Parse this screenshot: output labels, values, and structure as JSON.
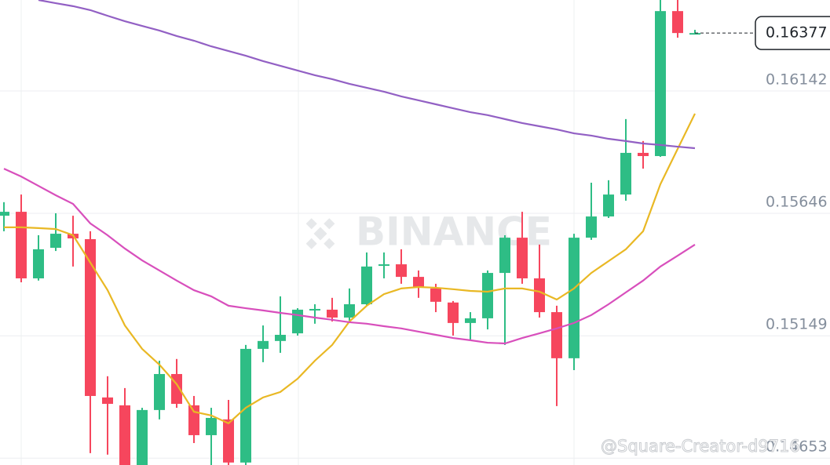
{
  "chart_data": {
    "type": "candlestick",
    "ylim": [
      0.14625,
      0.16511
    ],
    "yticks": [
      0.16142,
      0.15646,
      0.15149,
      0.14653
    ],
    "grid": true,
    "up_color": "#2ebd85",
    "down_color": "#f6465d",
    "open": [
      0.15636,
      0.15652,
      0.15382,
      0.15506,
      0.15563,
      0.15541,
      0.14899,
      0.14867,
      0.14625,
      0.14848,
      0.14994,
      0.14867,
      0.14746,
      0.1481,
      0.14635,
      0.15096,
      0.15128,
      0.15159,
      0.15255,
      0.15255,
      0.15223,
      0.15277,
      0.15433,
      0.15439,
      0.15388,
      0.15341,
      0.15284,
      0.15201,
      0.1522,
      0.15404,
      0.15547,
      0.15382,
      0.15245,
      0.15058,
      0.15547,
      0.15633,
      0.15722,
      0.15891,
      0.15878,
      0.16466,
      0.16374
    ],
    "high": [
      0.15691,
      0.15722,
      0.15557,
      0.15646,
      0.15636,
      0.15573,
      0.14985,
      0.14937,
      0.14857,
      0.15048,
      0.15055,
      0.14905,
      0.14857,
      0.14889,
      0.15112,
      0.15191,
      0.15309,
      0.15261,
      0.15277,
      0.15303,
      0.15341,
      0.15487,
      0.15487,
      0.155,
      0.15414,
      0.1536,
      0.1529,
      0.15245,
      0.15414,
      0.15557,
      0.15652,
      0.15519,
      0.15271,
      0.15563,
      0.1577,
      0.1578,
      0.16028,
      0.15939,
      0.16511,
      0.16511,
      0.1639
    ],
    "low": [
      0.15573,
      0.15366,
      0.15373,
      0.15493,
      0.1543,
      0.14673,
      0.14667,
      0.14603,
      0.14603,
      0.1481,
      0.14857,
      0.14714,
      0.14625,
      0.14625,
      0.14625,
      0.15042,
      0.1508,
      0.1515,
      0.15198,
      0.15207,
      0.15201,
      0.15271,
      0.15382,
      0.1536,
      0.15303,
      0.15245,
      0.1515,
      0.15131,
      0.15175,
      0.15112,
      0.1536,
      0.15223,
      0.14864,
      0.1501,
      0.15538,
      0.15627,
      0.15697,
      0.15827,
      0.15875,
      0.16358,
      0.16374
    ],
    "close": [
      0.15652,
      0.15382,
      0.155,
      0.15563,
      0.15544,
      0.14905,
      0.14873,
      0.14625,
      0.14848,
      0.14994,
      0.14873,
      0.14746,
      0.14816,
      0.14635,
      0.15096,
      0.15128,
      0.15153,
      0.15255,
      0.15258,
      0.15223,
      0.15277,
      0.1543,
      0.15439,
      0.15388,
      0.15347,
      0.15287,
      0.15201,
      0.1522,
      0.15404,
      0.15547,
      0.15382,
      0.15245,
      0.15058,
      0.15547,
      0.15633,
      0.15722,
      0.15891,
      0.15878,
      0.16466,
      0.16377,
      0.16377
    ],
    "series": [
      {
        "color": "#e9b824",
        "values": [
          0.15589,
          0.15589,
          0.15586,
          0.15582,
          0.15557,
          0.15446,
          0.15334,
          0.15191,
          0.15096,
          0.15032,
          0.14953,
          0.14841,
          0.14826,
          0.14794,
          0.14857,
          0.14899,
          0.14921,
          0.14975,
          0.15048,
          0.15112,
          0.15207,
          0.15271,
          0.15318,
          0.15341,
          0.15347,
          0.15344,
          0.15338,
          0.15331,
          0.15328,
          0.15341,
          0.15341,
          0.15328,
          0.15296,
          0.15341,
          0.15404,
          0.15452,
          0.155,
          0.15573,
          0.15764,
          0.15907,
          0.1605
        ]
      },
      {
        "color": "#d84fbc",
        "values": [
          0.15827,
          0.15795,
          0.15757,
          0.15719,
          0.15684,
          0.15605,
          0.15557,
          0.15503,
          0.15455,
          0.15414,
          0.15373,
          0.15334,
          0.15309,
          0.15271,
          0.15261,
          0.15252,
          0.15242,
          0.15233,
          0.15223,
          0.15214,
          0.15204,
          0.15198,
          0.15188,
          0.15179,
          0.15166,
          0.15153,
          0.1514,
          0.15131,
          0.15121,
          0.15118,
          0.1514,
          0.15159,
          0.15179,
          0.15201,
          0.15233,
          0.15277,
          0.15325,
          0.15373,
          0.1543,
          0.15474,
          0.15519
        ]
      },
      {
        "color": "#9260c4",
        "values": [
          null,
          null,
          0.16511,
          0.16498,
          0.16486,
          0.1647,
          0.16447,
          0.16425,
          0.16406,
          0.16387,
          0.16365,
          0.16346,
          0.16323,
          0.16304,
          0.16285,
          0.16263,
          0.16244,
          0.16225,
          0.16206,
          0.1619,
          0.16171,
          0.16155,
          0.16139,
          0.1612,
          0.16104,
          0.16088,
          0.16072,
          0.16056,
          0.16044,
          0.16028,
          0.16012,
          0.15999,
          0.15986,
          0.1597,
          0.15961,
          0.15948,
          0.15939,
          0.15929,
          0.15923,
          0.15916,
          0.1591
        ]
      }
    ],
    "current_price": 0.16377,
    "watermark": "BINANCE",
    "credit": "@Square-Creator-d9716"
  }
}
